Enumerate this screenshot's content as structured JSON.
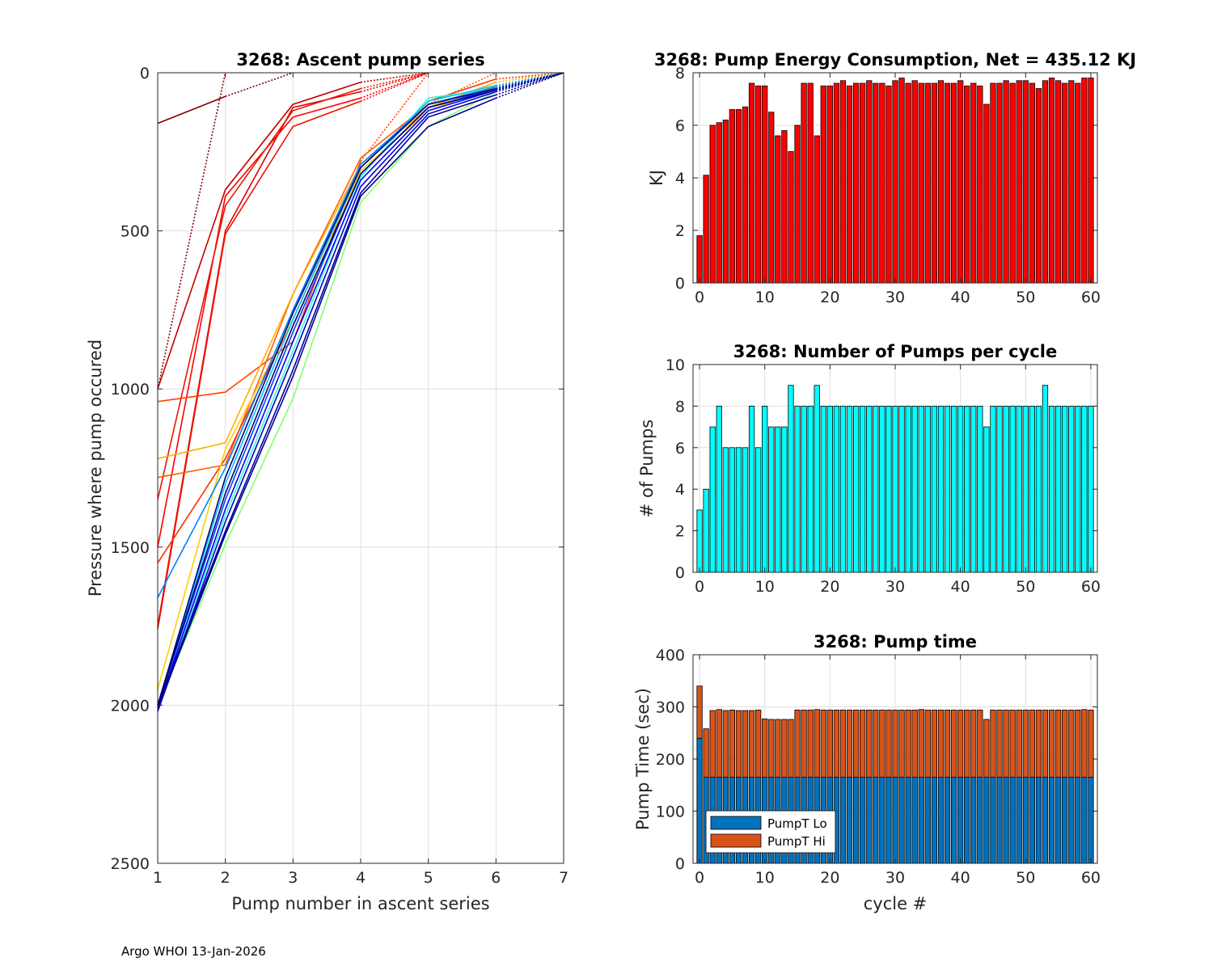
{
  "footer": "Argo WHOI 13-Jan-2026",
  "chart_data": [
    {
      "id": "ascent",
      "type": "line",
      "title": "3268: Ascent pump series",
      "xlabel": "Pump number in ascent series",
      "ylabel": "Pressure where pump occured",
      "xlim": [
        1,
        7
      ],
      "ylim": [
        0,
        2500
      ],
      "y_reversed": true,
      "xticks": [
        "1",
        "2",
        "3",
        "4",
        "5",
        "6",
        "7"
      ],
      "yticks": [
        "0",
        "500",
        "1000",
        "1500",
        "2000",
        "2500"
      ],
      "series": [
        {
          "name": "c0",
          "color": "#800000",
          "values": [
            160,
            75,
            0
          ]
        },
        {
          "name": "c1",
          "color": "#8b0000",
          "values": [
            1000,
            0
          ]
        },
        {
          "name": "c2",
          "color": "#c00000",
          "values": [
            1000,
            370,
            100,
            30,
            0
          ]
        },
        {
          "name": "c3",
          "color": "#e00000",
          "values": [
            1750,
            500,
            110,
            60,
            0
          ]
        },
        {
          "name": "c4",
          "color": "#ff0000",
          "values": [
            1500,
            390,
            140,
            80,
            0
          ]
        },
        {
          "name": "c5",
          "color": "#f01000",
          "values": [
            1760,
            510,
            170,
            90,
            0
          ]
        },
        {
          "name": "c6",
          "color": "#e81800",
          "values": [
            1350,
            420,
            120,
            50,
            0
          ]
        },
        {
          "name": "c7",
          "color": "#ff4000",
          "values": [
            1040,
            1010,
            850,
            280,
            0
          ]
        },
        {
          "name": "c8",
          "color": "#ff6000",
          "values": [
            1280,
            1240,
            700,
            270,
            100,
            0
          ]
        },
        {
          "name": "c9",
          "color": "#ff3000",
          "values": [
            1550,
            1220,
            780,
            300,
            90,
            20,
            0
          ]
        },
        {
          "name": "c10",
          "color": "#ffb000",
          "values": [
            1220,
            1170,
            700,
            290,
            110,
            30,
            0
          ]
        },
        {
          "name": "c11",
          "color": "#ffd000",
          "values": [
            1950,
            1190,
            780,
            310,
            120,
            40,
            0
          ]
        },
        {
          "name": "c12",
          "color": "#80ff70",
          "values": [
            2000,
            1490,
            1030,
            410,
            170,
            60,
            0
          ]
        },
        {
          "name": "c13",
          "color": "#30ffd0",
          "values": [
            2010,
            1400,
            880,
            330,
            80,
            50,
            0
          ]
        },
        {
          "name": "c14",
          "color": "#00c0ff",
          "values": [
            2000,
            1300,
            780,
            300,
            90,
            40,
            0
          ]
        },
        {
          "name": "c15",
          "color": "#0080ff",
          "values": [
            1660,
            1250,
            750,
            290,
            100,
            45,
            0
          ]
        },
        {
          "name": "c16",
          "color": "#0040ff",
          "values": [
            2000,
            1350,
            820,
            320,
            110,
            50,
            0
          ]
        },
        {
          "name": "c17",
          "color": "#0000ff",
          "values": [
            2010,
            1380,
            850,
            340,
            120,
            55,
            0
          ]
        },
        {
          "name": "c18",
          "color": "#0000d0",
          "values": [
            2020,
            1420,
            900,
            360,
            130,
            60,
            0
          ]
        },
        {
          "name": "c19",
          "color": "#0000a0",
          "values": [
            2000,
            1450,
            940,
            380,
            140,
            70,
            0
          ]
        },
        {
          "name": "c20",
          "color": "#000090",
          "values": [
            2010,
            1460,
            960,
            390,
            170,
            80,
            0
          ]
        },
        {
          "name": "c21",
          "color": "#000080",
          "values": [
            2000,
            1280,
            760,
            300,
            100,
            50,
            0
          ]
        },
        {
          "name": "c22",
          "color": "#000070",
          "values": [
            2000,
            1330,
            800,
            320,
            110,
            55,
            0
          ]
        }
      ]
    },
    {
      "id": "energy",
      "type": "bar",
      "title": "3268: Pump Energy Consumption,  Net = 435.12 KJ",
      "xlabel": "",
      "ylabel": "KJ",
      "xlim": [
        -1,
        61
      ],
      "ylim": [
        0,
        8
      ],
      "xticks": [
        "0",
        "10",
        "20",
        "30",
        "40",
        "50",
        "60"
      ],
      "yticks": [
        "0",
        "2",
        "4",
        "6",
        "8"
      ],
      "color": "#ff0000",
      "x_start": 0,
      "values": [
        1.8,
        4.1,
        6.0,
        6.1,
        6.2,
        6.6,
        6.6,
        6.7,
        7.6,
        7.5,
        7.5,
        6.5,
        5.6,
        5.8,
        5.0,
        6.0,
        7.6,
        7.6,
        5.6,
        7.5,
        7.5,
        7.6,
        7.7,
        7.5,
        7.6,
        7.6,
        7.7,
        7.6,
        7.6,
        7.5,
        7.7,
        7.8,
        7.6,
        7.7,
        7.6,
        7.6,
        7.6,
        7.7,
        7.6,
        7.6,
        7.7,
        7.5,
        7.6,
        7.5,
        6.8,
        7.6,
        7.6,
        7.7,
        7.6,
        7.7,
        7.7,
        7.6,
        7.4,
        7.7,
        7.8,
        7.7,
        7.6,
        7.7,
        7.6,
        7.8,
        7.8
      ]
    },
    {
      "id": "npumps",
      "type": "bar",
      "title": "3268: Number of Pumps per cycle",
      "xlabel": "",
      "ylabel": "# of Pumps",
      "xlim": [
        -1,
        61
      ],
      "ylim": [
        0,
        10
      ],
      "xticks": [
        "0",
        "10",
        "20",
        "30",
        "40",
        "50",
        "60"
      ],
      "yticks": [
        "0",
        "2",
        "4",
        "6",
        "8",
        "10"
      ],
      "color": "#00ffff",
      "x_start": 0,
      "values": [
        3,
        4,
        7,
        8,
        6,
        6,
        6,
        6,
        8,
        6,
        8,
        7,
        7,
        7,
        9,
        8,
        8,
        8,
        9,
        8,
        8,
        8,
        8,
        8,
        8,
        8,
        8,
        8,
        8,
        8,
        8,
        8,
        8,
        8,
        8,
        8,
        8,
        8,
        8,
        8,
        8,
        8,
        8,
        8,
        7,
        8,
        8,
        8,
        8,
        8,
        8,
        8,
        8,
        9,
        8,
        8,
        8,
        8,
        8,
        8,
        8
      ]
    },
    {
      "id": "pumptime",
      "type": "bar",
      "stacked": true,
      "title": "3268: Pump time",
      "xlabel": "cycle #",
      "ylabel": "Pump Time (sec)",
      "xlim": [
        -1,
        61
      ],
      "ylim": [
        0,
        400
      ],
      "xticks": [
        "0",
        "10",
        "20",
        "30",
        "40",
        "50",
        "60"
      ],
      "yticks": [
        "0",
        "100",
        "200",
        "300",
        "400"
      ],
      "x_start": 0,
      "series": [
        {
          "name": "PumpT Lo",
          "color": "#0072bd",
          "values": [
            240,
            165,
            165,
            165,
            165,
            165,
            165,
            165,
            165,
            165,
            165,
            165,
            165,
            165,
            165,
            165,
            165,
            165,
            165,
            165,
            165,
            165,
            165,
            165,
            165,
            165,
            165,
            165,
            165,
            165,
            165,
            165,
            165,
            165,
            165,
            165,
            165,
            165,
            165,
            165,
            165,
            165,
            165,
            165,
            165,
            165,
            165,
            165,
            165,
            165,
            165,
            165,
            165,
            165,
            165,
            165,
            165,
            165,
            165,
            165,
            165
          ]
        },
        {
          "name": "PumpT Hi",
          "color": "#d95319",
          "values": [
            100,
            93,
            128,
            130,
            128,
            129,
            128,
            128,
            128,
            129,
            112,
            111,
            111,
            111,
            111,
            129,
            129,
            129,
            130,
            129,
            129,
            129,
            129,
            129,
            129,
            129,
            129,
            129,
            129,
            129,
            129,
            129,
            129,
            129,
            130,
            129,
            129,
            129,
            129,
            129,
            129,
            129,
            129,
            129,
            111,
            129,
            129,
            129,
            129,
            129,
            129,
            129,
            129,
            129,
            129,
            129,
            129,
            129,
            129,
            130,
            129
          ]
        }
      ],
      "legend": [
        "PumpT Lo",
        "PumpT Hi"
      ],
      "legend_location": "bottom-left"
    }
  ]
}
